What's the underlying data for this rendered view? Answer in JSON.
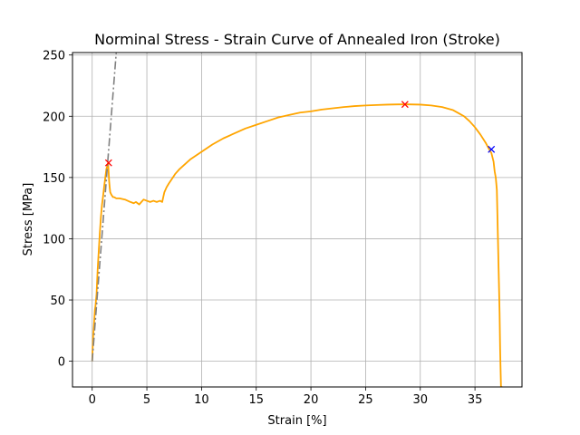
{
  "chart_data": {
    "type": "line",
    "title": "Norminal Stress - Strain Curve of Annealed Iron (Stroke)",
    "xlabel": "Strain [%]",
    "ylabel": "Stress [MPa]",
    "xlim": [
      -1.8,
      39.3
    ],
    "ylim": [
      -21,
      252
    ],
    "xticks": [
      0,
      5,
      10,
      15,
      20,
      25,
      30,
      35
    ],
    "yticks": [
      0,
      50,
      100,
      150,
      200,
      250
    ],
    "grid": true,
    "colors": {
      "curve": "#ffa500",
      "elastic_line": "#808080",
      "marker_red": "#ff0000",
      "marker_blue": "#0000ff",
      "grid": "#b0b0b0"
    },
    "series": [
      {
        "style": "solid",
        "x": [
          0,
          0.05,
          0.1,
          0.15,
          0.2,
          0.25,
          0.3,
          0.4,
          0.5,
          0.6,
          0.7,
          0.8,
          0.9,
          1.0,
          1.1,
          1.2,
          1.3,
          1.4,
          1.45,
          1.5,
          1.55,
          1.6,
          1.65,
          1.75,
          1.9,
          2.0,
          2.2,
          2.5,
          3.0,
          3.5,
          3.8,
          4.0,
          4.3,
          4.5,
          4.7,
          5.0,
          5.3,
          5.6,
          5.9,
          6.2,
          6.4,
          6.5,
          6.6,
          6.8,
          7.0,
          7.3,
          7.6,
          8.0,
          9.0,
          10.0,
          11.0,
          12.0,
          13.0,
          14.0,
          15.0,
          16.0,
          17.0,
          18.0,
          19.0,
          20.0,
          21.0,
          22.0,
          23.0,
          24.0,
          25.0,
          26.0,
          27.0,
          28.0,
          28.6,
          29.0,
          30.0,
          31.0,
          32.0,
          33.0,
          34.0,
          34.5,
          35.0,
          35.5,
          36.0,
          36.3,
          36.5,
          36.7,
          36.8,
          36.9,
          37.0,
          37.05,
          37.1,
          37.15,
          37.2,
          37.25,
          37.3,
          37.35,
          37.38,
          37.4,
          37.45,
          37.48,
          37.5,
          37.5
        ],
        "y": [
          0,
          12,
          22,
          28,
          35,
          42,
          45,
          55,
          75,
          90,
          105,
          118,
          128,
          135,
          143,
          150,
          157,
          160,
          162,
          155,
          147,
          142,
          138,
          136,
          134,
          134,
          133,
          133,
          132,
          130,
          129,
          130,
          128,
          130,
          132,
          131,
          130,
          131,
          130,
          131,
          130,
          134,
          138,
          142,
          145,
          149,
          153,
          157,
          165,
          171,
          177,
          182,
          186,
          190,
          193,
          196,
          199,
          201,
          203,
          204,
          205.5,
          206.5,
          207.5,
          208.3,
          208.8,
          209.2,
          209.5,
          209.7,
          209.7,
          209.7,
          209.5,
          208.8,
          207.5,
          205,
          200,
          196,
          191,
          185,
          178,
          173,
          170,
          163,
          155,
          150,
          140,
          120,
          100,
          80,
          60,
          40,
          10,
          -10,
          -21,
          -21,
          -21,
          -21,
          -21,
          -21
        ]
      },
      {
        "style": "dashdot",
        "x": [
          0,
          2.2
        ],
        "y": [
          0,
          252
        ]
      }
    ],
    "markers": [
      {
        "x": 1.5,
        "y": 162,
        "symbol": "x",
        "color": "red"
      },
      {
        "x": 28.6,
        "y": 209.7,
        "symbol": "x",
        "color": "red"
      },
      {
        "x": 36.5,
        "y": 173,
        "symbol": "x",
        "color": "blue"
      }
    ]
  }
}
